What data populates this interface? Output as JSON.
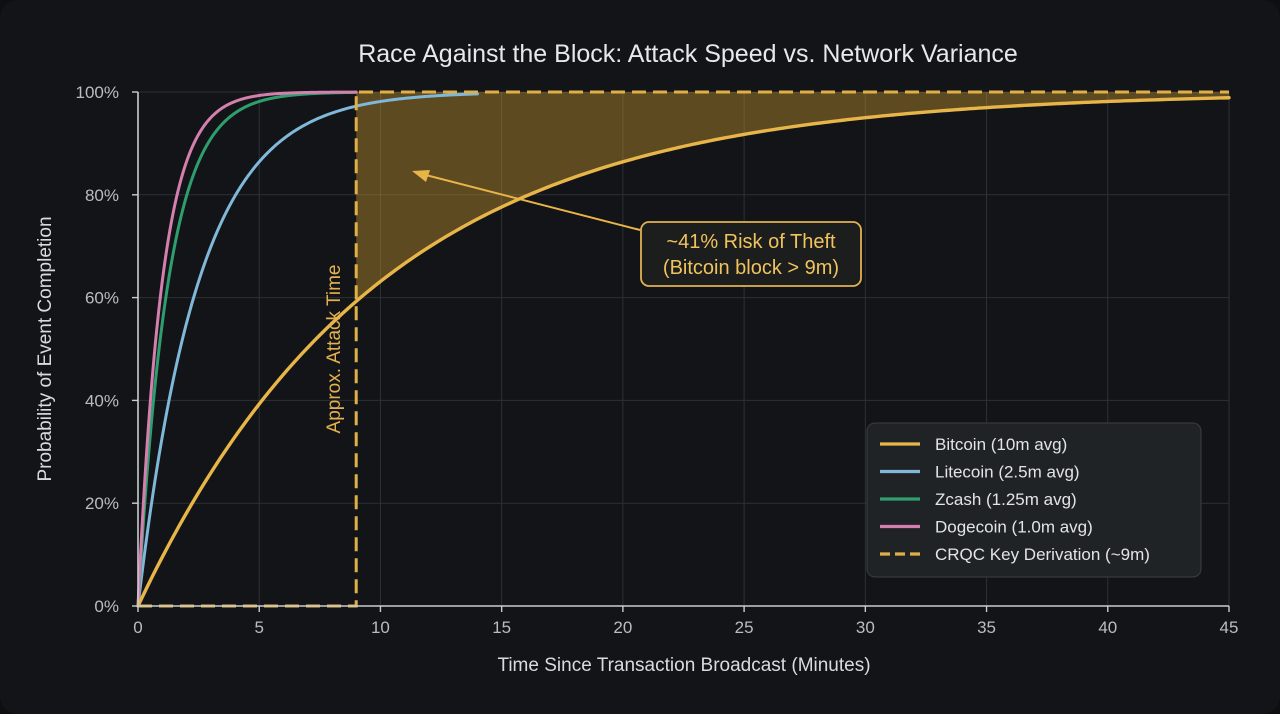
{
  "chart_data": {
    "type": "line",
    "title": "Race Against the Block: Attack Speed vs. Network Variance",
    "xlabel": "Time Since Transaction Broadcast (Minutes)",
    "ylabel": "Probability of Event Completion",
    "xlim": [
      0,
      45
    ],
    "ylim": [
      0,
      1
    ],
    "x_ticks": [
      0,
      5,
      10,
      15,
      20,
      25,
      30,
      35,
      40,
      45
    ],
    "x_tick_labels": [
      "0",
      "5",
      "10",
      "15",
      "20",
      "25",
      "30",
      "35",
      "40",
      "45"
    ],
    "y_ticks": [
      0,
      0.2,
      0.4,
      0.6,
      0.8,
      1.0
    ],
    "y_tick_labels": [
      "0%",
      "20%",
      "40%",
      "60%",
      "80%",
      "100%"
    ],
    "grid": true,
    "legend_position": "bottom-right",
    "series": [
      {
        "name": "Bitcoin (10m avg)",
        "color": "#e8b548",
        "style": "solid",
        "x_max": 45,
        "x": [
          0,
          1,
          2,
          3,
          4,
          5,
          6,
          7,
          8,
          9,
          10,
          12,
          14,
          16,
          18,
          20,
          22,
          25,
          28,
          30,
          33,
          36,
          40,
          45
        ],
        "y": [
          0,
          0.095,
          0.181,
          0.259,
          0.33,
          0.393,
          0.451,
          0.503,
          0.551,
          0.593,
          0.632,
          0.699,
          0.753,
          0.798,
          0.835,
          0.865,
          0.889,
          0.918,
          0.939,
          0.95,
          0.963,
          0.973,
          0.982,
          0.989
        ]
      },
      {
        "name": "Litecoin (2.5m avg)",
        "color": "#7fb8d8",
        "style": "solid",
        "x_max": 14,
        "x": [
          0,
          0.5,
          1,
          1.5,
          2,
          2.5,
          3,
          3.5,
          4,
          4.5,
          5,
          6,
          7,
          8,
          9,
          10,
          11,
          12,
          13,
          14
        ],
        "y": [
          0,
          0.181,
          0.33,
          0.451,
          0.551,
          0.632,
          0.699,
          0.753,
          0.798,
          0.835,
          0.865,
          0.909,
          0.939,
          0.959,
          0.973,
          0.982,
          0.988,
          0.992,
          0.994,
          0.996
        ]
      },
      {
        "name": "Zcash (1.25m avg)",
        "color": "#2e9e6e",
        "style": "solid",
        "x_max": 9,
        "x": [
          0,
          0.25,
          0.5,
          0.75,
          1,
          1.25,
          1.5,
          1.75,
          2,
          2.5,
          3,
          3.5,
          4,
          5,
          6,
          7,
          8,
          9
        ],
        "y": [
          0,
          0.181,
          0.33,
          0.451,
          0.551,
          0.632,
          0.699,
          0.753,
          0.798,
          0.865,
          0.909,
          0.939,
          0.959,
          0.982,
          0.992,
          0.996,
          0.998,
          0.999
        ]
      },
      {
        "name": "Dogecoin (1.0m avg)",
        "color": "#d47fae",
        "style": "solid",
        "x_max": 9,
        "x": [
          0,
          0.2,
          0.4,
          0.6,
          0.8,
          1,
          1.25,
          1.5,
          1.75,
          2,
          2.5,
          3,
          3.5,
          4,
          5,
          6,
          7,
          8,
          9
        ],
        "y": [
          0,
          0.181,
          0.33,
          0.451,
          0.551,
          0.632,
          0.713,
          0.777,
          0.826,
          0.865,
          0.918,
          0.95,
          0.97,
          0.982,
          0.993,
          0.998,
          0.999,
          1.0,
          1.0
        ]
      },
      {
        "name": "CRQC Key Derivation (~9m)",
        "color": "#e0b048",
        "style": "dashed",
        "x": [
          0,
          9,
          9,
          45
        ],
        "y": [
          0,
          0,
          1,
          1
        ]
      }
    ],
    "shaded_region": {
      "from_x": 9,
      "to_x": 45,
      "between": [
        "Bitcoin (10m avg)",
        "CRQC Key Derivation (~9m)"
      ],
      "color": "#c9962f"
    },
    "annotations": [
      {
        "id": "risk",
        "lines": [
          "~41% Risk of Theft",
          "(Bitcoin block > 9m)"
        ],
        "arrow_to": [
          11.5,
          0.84
        ]
      },
      {
        "id": "attack_time",
        "text": "Approx. Attack Time",
        "x": 9,
        "orientation": "vertical"
      }
    ]
  }
}
